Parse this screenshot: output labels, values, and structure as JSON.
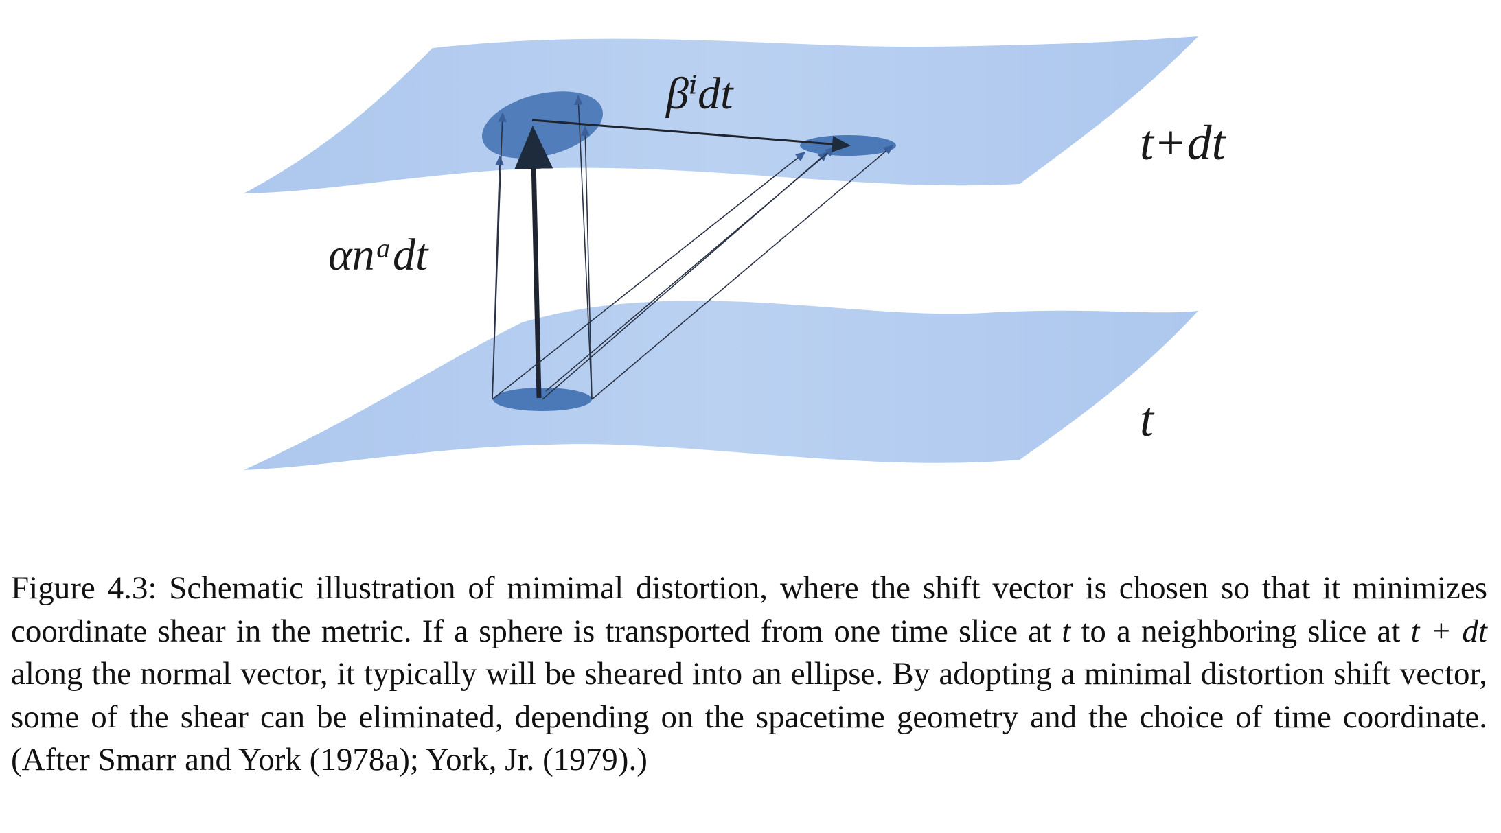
{
  "figure": {
    "labels": {
      "shift": "βⁱdt",
      "lapse": "αnᵃdt",
      "upper_slice": "t+dt",
      "lower_slice": "t"
    },
    "colors": {
      "slice_fill": "#a9c4ec",
      "ellipse_fill": "#3f6fb0",
      "arrow": "#1e2b3c"
    }
  },
  "caption": {
    "prefix": "Figure 4.3: Schematic illustration of mimimal distortion, where the shift vector is chosen so that it minimizes coordinate shear in the metric. If a sphere is transported from one time slice at ",
    "var_t": "t",
    "mid1": " to a neighboring slice at ",
    "var_t_plus_dt": "t + dt",
    "suffix": " along the normal vector, it typically will be sheared into an ellipse. By adopting a minimal distortion shift vector, some of the shear can be eliminated, depending on the spacetime geometry and the choice of time coordinate. (After Smarr and York (1978a); York, Jr. (1979).)"
  }
}
